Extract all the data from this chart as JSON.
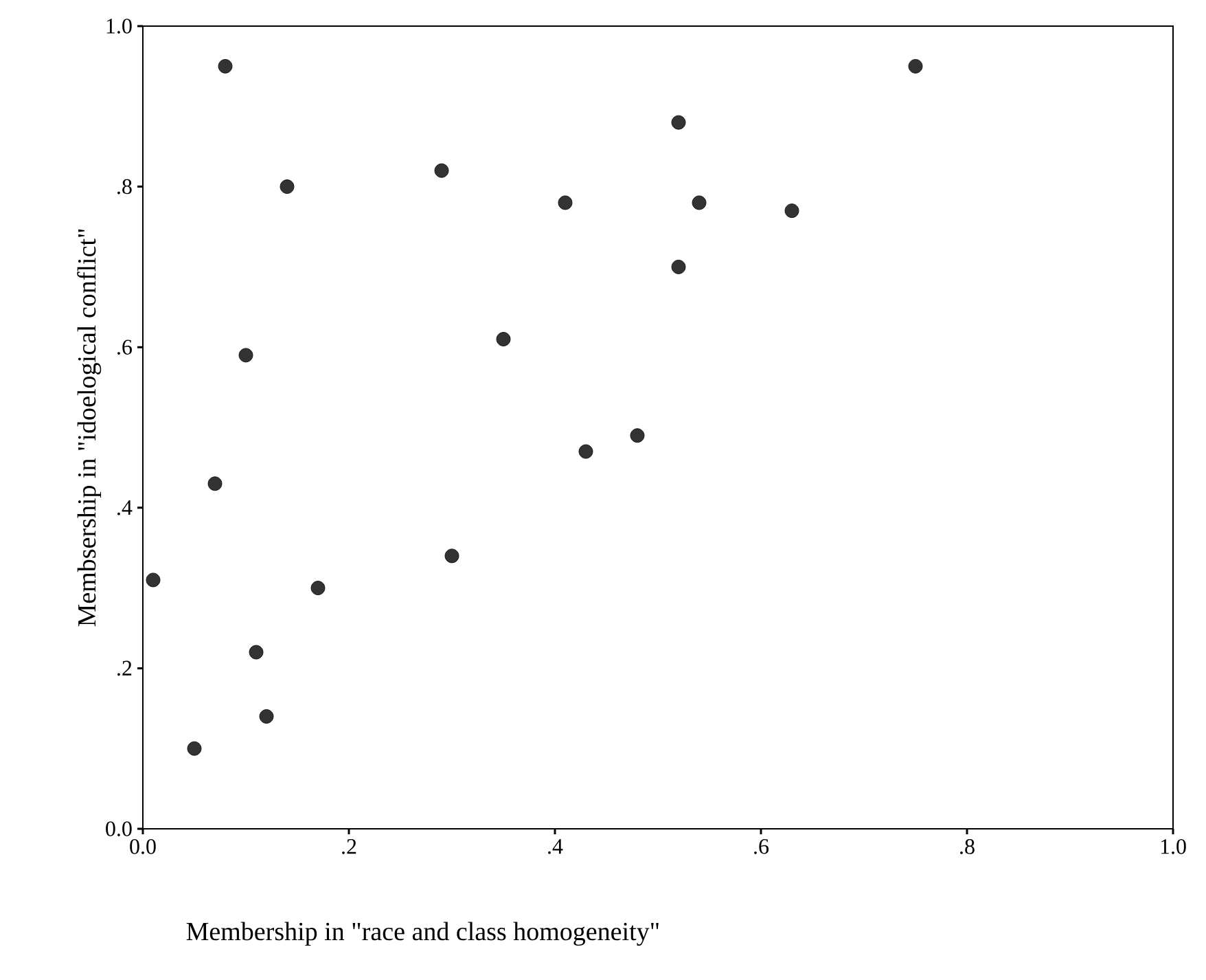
{
  "chart_data": {
    "type": "scatter",
    "xlabel": "Membership in \"race and class homogeneity\"",
    "ylabel": "Membsership in \"idoelogical conflict\"",
    "x": [
      0.01,
      0.08,
      0.14,
      0.1,
      0.07,
      0.17,
      0.11,
      0.12,
      0.05,
      0.29,
      0.3,
      0.35,
      0.41,
      0.43,
      0.48,
      0.52,
      0.52,
      0.54,
      0.63,
      0.75
    ],
    "values": [
      0.31,
      0.95,
      0.8,
      0.59,
      0.43,
      0.3,
      0.22,
      0.14,
      0.1,
      0.82,
      0.34,
      0.61,
      0.78,
      0.47,
      0.49,
      0.88,
      0.7,
      0.78,
      0.77,
      0.95
    ],
    "color": "#333333",
    "marker": "circle",
    "xlim": [
      0,
      1
    ],
    "ylim": [
      0,
      1
    ],
    "xticks": [
      {
        "value": 0,
        "label": "0.0"
      },
      {
        "value": 0.2,
        "label": ".2"
      },
      {
        "value": 0.4,
        "label": ".4"
      },
      {
        "value": 0.6,
        "label": ".6"
      },
      {
        "value": 0.8,
        "label": ".8"
      },
      {
        "value": 1,
        "label": "1.0"
      }
    ],
    "yticks": [
      {
        "value": 0,
        "label": "0.0"
      },
      {
        "value": 0.2,
        "label": ".2"
      },
      {
        "value": 0.4,
        "label": ".4"
      },
      {
        "value": 0.6,
        "label": ".6"
      },
      {
        "value": 0.8,
        "label": ".8"
      },
      {
        "value": 1,
        "label": "1.0"
      }
    ]
  }
}
